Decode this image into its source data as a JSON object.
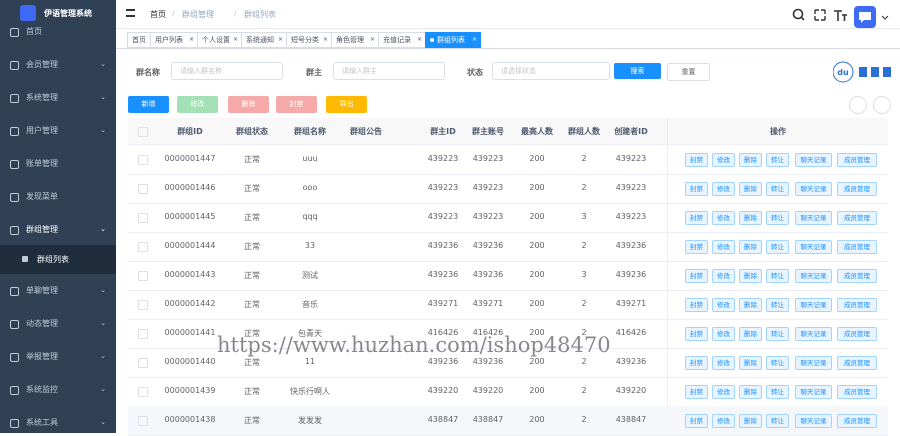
{
  "sidebar": {
    "title": "伊语管理系统",
    "menu": [
      {
        "label": "首页"
      },
      {
        "label": "会员管理"
      },
      {
        "label": "系统管理"
      },
      {
        "label": "用户管理"
      },
      {
        "label": "账单管理"
      },
      {
        "label": "发现菜单"
      },
      {
        "label": "群组管理",
        "children": [
          "群组列表"
        ]
      },
      {
        "label": "单聊管理"
      },
      {
        "label": "动态管理"
      },
      {
        "label": "举报管理"
      },
      {
        "label": "系统监控"
      },
      {
        "label": "系统工具"
      }
    ]
  },
  "header": {
    "breadcrumb": [
      "首页",
      "群组管理",
      "群组列表"
    ]
  },
  "tabs": [
    "首页",
    "用户列表",
    "个人设置",
    "系统通知",
    "短号分类",
    "角色管理",
    "充值记录",
    "群组列表"
  ],
  "search": {
    "fields": [
      {
        "label": "群名称",
        "placeholder": "请输入群名称"
      },
      {
        "label": "群主",
        "placeholder": "请输入群主"
      },
      {
        "label": "状态",
        "placeholder": "请选择状态"
      }
    ],
    "buttons": [
      "搜索",
      "重置"
    ]
  },
  "toolbar": [
    "新增",
    "修改",
    "删除",
    "封禁",
    "导出"
  ],
  "table": {
    "columns": [
      "群组ID",
      "群组状态",
      "群组名称",
      "群组公告",
      "群主ID",
      "群主账号",
      "最高人数",
      "群组人数",
      "创建者ID",
      "操作"
    ],
    "rows": [
      {
        "id": "0000001447",
        "status": "正常",
        "name": "uuu",
        "owner_id": 439223,
        "owner_account": 439223,
        "max": 200,
        "count": 2,
        "creator": 439223
      },
      {
        "id": "0000001446",
        "status": "正常",
        "name": "ooo",
        "owner_id": 439223,
        "owner_account": 439223,
        "max": 200,
        "count": 2,
        "creator": 439223
      },
      {
        "id": "0000001445",
        "status": "正常",
        "name": "qqq",
        "owner_id": 439223,
        "owner_account": 439223,
        "max": 200,
        "count": 3,
        "creator": 439223
      },
      {
        "id": "0000001444",
        "status": "正常",
        "name": "33",
        "owner_id": 439236,
        "owner_account": 439236,
        "max": 200,
        "count": 2,
        "creator": 439236
      },
      {
        "id": "0000001443",
        "status": "正常",
        "name": "测试",
        "owner_id": 439236,
        "owner_account": 439236,
        "max": 200,
        "count": 3,
        "creator": 439236
      },
      {
        "id": "0000001442",
        "status": "正常",
        "name": "音乐",
        "owner_id": 439271,
        "owner_account": 439271,
        "max": 200,
        "count": 2,
        "creator": 439271
      },
      {
        "id": "0000001441",
        "status": "正常",
        "name": "包青天",
        "owner_id": 416426,
        "owner_account": 416426,
        "max": 200,
        "count": 2,
        "creator": 416426
      },
      {
        "id": "0000001440",
        "status": "正常",
        "name": "11",
        "owner_id": 439236,
        "owner_account": 439236,
        "max": 200,
        "count": 2,
        "creator": 439236
      },
      {
        "id": "0000001439",
        "status": "正常",
        "name": "快乐行啊人",
        "owner_id": 439220,
        "owner_account": 439220,
        "max": 200,
        "count": 2,
        "creator": 439220
      },
      {
        "id": "0000001438",
        "status": "正常",
        "name": "发发发",
        "owner_id": 438847,
        "owner_account": 438847,
        "max": 200,
        "count": 2,
        "creator": 438847
      }
    ],
    "actions": [
      "封禁",
      "修改",
      "删除",
      "转让",
      "聊天记录",
      "成员管理"
    ]
  },
  "watermark": "https://www.huzhan.com/ishop48470"
}
